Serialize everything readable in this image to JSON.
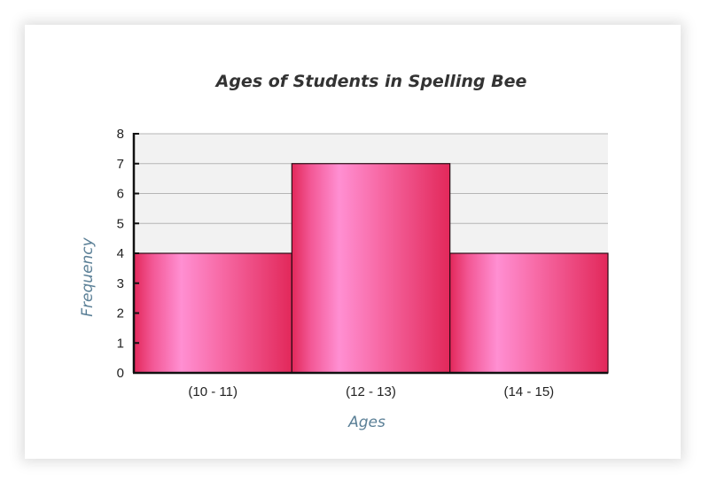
{
  "chart_data": {
    "type": "bar",
    "title": "Ages of Students in Spelling Bee",
    "xlabel": "Ages",
    "ylabel": "Frequency",
    "categories": [
      "(10 - 11)",
      "(12 - 13)",
      "(14 - 15)"
    ],
    "values": [
      4,
      7,
      4
    ],
    "ylim": [
      0,
      8
    ],
    "yticks": [
      "0",
      "1",
      "2",
      "3",
      "4",
      "5",
      "6",
      "7",
      "8"
    ],
    "grid": true,
    "legend": "none",
    "colors": {
      "bar_edge": "#e2285a",
      "bar_highlight": "#ff8fd2",
      "bar_outline": "#2a0a14",
      "axis_label": "#5a7f96",
      "plot_background": "#f2f2f2",
      "gridline": "#b5b5b5"
    }
  }
}
